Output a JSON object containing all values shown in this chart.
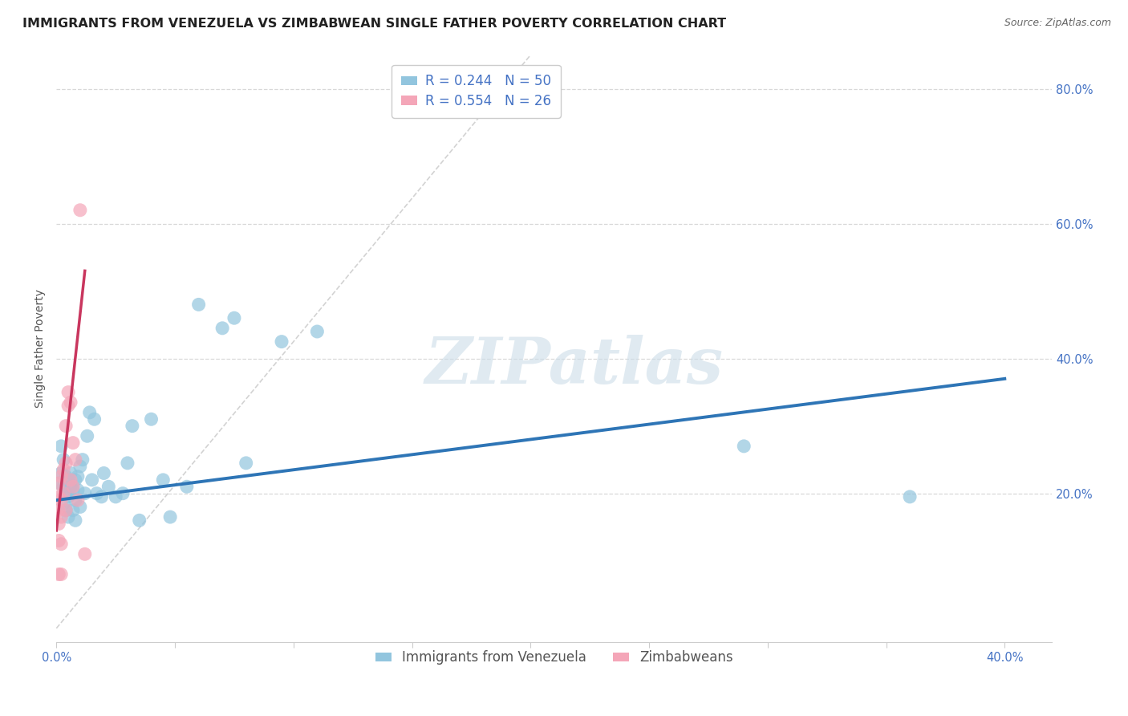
{
  "title": "IMMIGRANTS FROM VENEZUELA VS ZIMBABWEAN SINGLE FATHER POVERTY CORRELATION CHART",
  "source": "Source: ZipAtlas.com",
  "ylabel": "Single Father Poverty",
  "xlim": [
    0.0,
    0.42
  ],
  "ylim": [
    -0.02,
    0.85
  ],
  "xticks": [
    0.0,
    0.05,
    0.1,
    0.15,
    0.2,
    0.25,
    0.3,
    0.35,
    0.4
  ],
  "xticklabels": [
    "0.0%",
    "",
    "",
    "",
    "",
    "",
    "",
    "",
    "40.0%"
  ],
  "yticks": [
    0.0,
    0.2,
    0.4,
    0.6,
    0.8
  ],
  "yticklabels": [
    "",
    "20.0%",
    "40.0%",
    "60.0%",
    "80.0%"
  ],
  "blue_r": "0.244",
  "blue_n": "50",
  "pink_r": "0.554",
  "pink_n": "26",
  "legend1_label": "Immigrants from Venezuela",
  "legend2_label": "Zimbabweans",
  "blue_color": "#92c5de",
  "pink_color": "#f4a6b8",
  "blue_line_color": "#2e75b6",
  "pink_line_color": "#c9365e",
  "tick_color": "#4472c4",
  "watermark_text": "ZIPatlas",
  "blue_points_x": [
    0.001,
    0.002,
    0.002,
    0.003,
    0.003,
    0.003,
    0.004,
    0.004,
    0.004,
    0.005,
    0.005,
    0.005,
    0.006,
    0.006,
    0.007,
    0.007,
    0.008,
    0.008,
    0.008,
    0.009,
    0.009,
    0.01,
    0.01,
    0.011,
    0.012,
    0.013,
    0.014,
    0.015,
    0.016,
    0.017,
    0.019,
    0.02,
    0.022,
    0.025,
    0.028,
    0.03,
    0.032,
    0.035,
    0.04,
    0.045,
    0.048,
    0.055,
    0.06,
    0.07,
    0.075,
    0.08,
    0.095,
    0.11,
    0.29,
    0.36
  ],
  "blue_points_y": [
    0.215,
    0.27,
    0.23,
    0.25,
    0.21,
    0.185,
    0.225,
    0.2,
    0.175,
    0.22,
    0.195,
    0.165,
    0.23,
    0.21,
    0.175,
    0.205,
    0.22,
    0.19,
    0.16,
    0.225,
    0.205,
    0.24,
    0.18,
    0.25,
    0.2,
    0.285,
    0.32,
    0.22,
    0.31,
    0.2,
    0.195,
    0.23,
    0.21,
    0.195,
    0.2,
    0.245,
    0.3,
    0.16,
    0.31,
    0.22,
    0.165,
    0.21,
    0.48,
    0.445,
    0.46,
    0.245,
    0.425,
    0.44,
    0.27,
    0.195
  ],
  "pink_points_x": [
    0.001,
    0.001,
    0.001,
    0.001,
    0.001,
    0.001,
    0.002,
    0.002,
    0.002,
    0.002,
    0.002,
    0.003,
    0.003,
    0.004,
    0.004,
    0.004,
    0.005,
    0.005,
    0.006,
    0.006,
    0.007,
    0.007,
    0.008,
    0.009,
    0.01,
    0.012
  ],
  "pink_points_y": [
    0.215,
    0.195,
    0.175,
    0.155,
    0.13,
    0.08,
    0.225,
    0.19,
    0.165,
    0.125,
    0.08,
    0.235,
    0.2,
    0.3,
    0.245,
    0.175,
    0.35,
    0.33,
    0.335,
    0.22,
    0.275,
    0.21,
    0.25,
    0.19,
    0.62,
    0.11
  ],
  "blue_trend_x": [
    0.0,
    0.4
  ],
  "blue_trend_y": [
    0.19,
    0.37
  ],
  "pink_trend_x": [
    0.0,
    0.012
  ],
  "pink_trend_y": [
    0.145,
    0.53
  ],
  "diag_line_x": [
    0.0,
    0.2
  ],
  "diag_line_y": [
    0.0,
    0.85
  ],
  "grid_color": "#d8d8d8",
  "background_color": "#ffffff",
  "title_fontsize": 11.5,
  "axis_label_fontsize": 10,
  "tick_fontsize": 10.5,
  "legend_fontsize": 12
}
